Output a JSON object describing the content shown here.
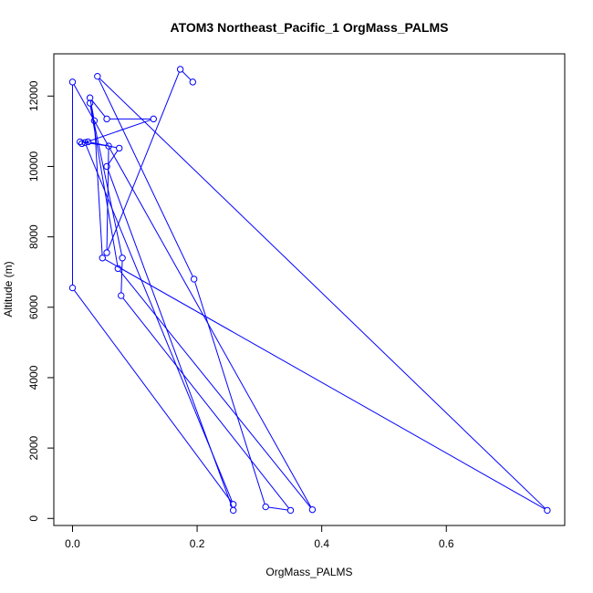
{
  "chart_data": {
    "type": "line",
    "title": "ATOM3 Northeast_Pacific_1 OrgMass_PALMS",
    "xlabel": "OrgMass_PALMS",
    "ylabel": "Altitude (m)",
    "xlim": [
      -0.03,
      0.79
    ],
    "ylim": [
      -200,
      13200
    ],
    "x_ticks": [
      0.0,
      0.2,
      0.4,
      0.6
    ],
    "x_tick_labels": [
      "0.0",
      "0.2",
      "0.4",
      "0.6"
    ],
    "y_ticks": [
      0,
      2000,
      4000,
      6000,
      8000,
      10000,
      12000
    ],
    "y_tick_labels": [
      "0",
      "2000",
      "4000",
      "6000",
      "8000",
      "10000",
      "12000"
    ],
    "grid": false,
    "legend": "none",
    "series": [
      {
        "color": "#0000ff",
        "marker": "open-circle",
        "points": [
          {
            "x": 0.258,
            "y": 230
          },
          {
            "x": 0.055,
            "y": 10000
          },
          {
            "x": 0.075,
            "y": 10520
          },
          {
            "x": 0.025,
            "y": 10700
          },
          {
            "x": 0.015,
            "y": 10650
          },
          {
            "x": 0.13,
            "y": 11350
          },
          {
            "x": 0.055,
            "y": 11350
          },
          {
            "x": 0.028,
            "y": 11950
          },
          {
            "x": 0.035,
            "y": 11300
          },
          {
            "x": 0.048,
            "y": 7400
          },
          {
            "x": 0.762,
            "y": 230
          },
          {
            "x": 0.04,
            "y": 12560
          },
          {
            "x": 0.195,
            "y": 6800
          },
          {
            "x": 0.31,
            "y": 330
          },
          {
            "x": 0.35,
            "y": 230
          },
          {
            "x": 0.078,
            "y": 6330
          },
          {
            "x": 0.08,
            "y": 7400
          },
          {
            "x": 0.028,
            "y": 11800
          },
          {
            "x": 0.073,
            "y": 7100
          },
          {
            "x": 0.385,
            "y": 250
          },
          {
            "x": 0.0,
            "y": 12400
          },
          {
            "x": 0.0,
            "y": 6550
          },
          {
            "x": 0.258,
            "y": 400
          },
          {
            "x": 0.02,
            "y": 10680
          },
          {
            "x": 0.012,
            "y": 10700
          },
          {
            "x": 0.058,
            "y": 10580
          },
          {
            "x": 0.055,
            "y": 7550
          },
          {
            "x": 0.173,
            "y": 12760
          },
          {
            "x": 0.193,
            "y": 12400
          }
        ]
      }
    ]
  }
}
